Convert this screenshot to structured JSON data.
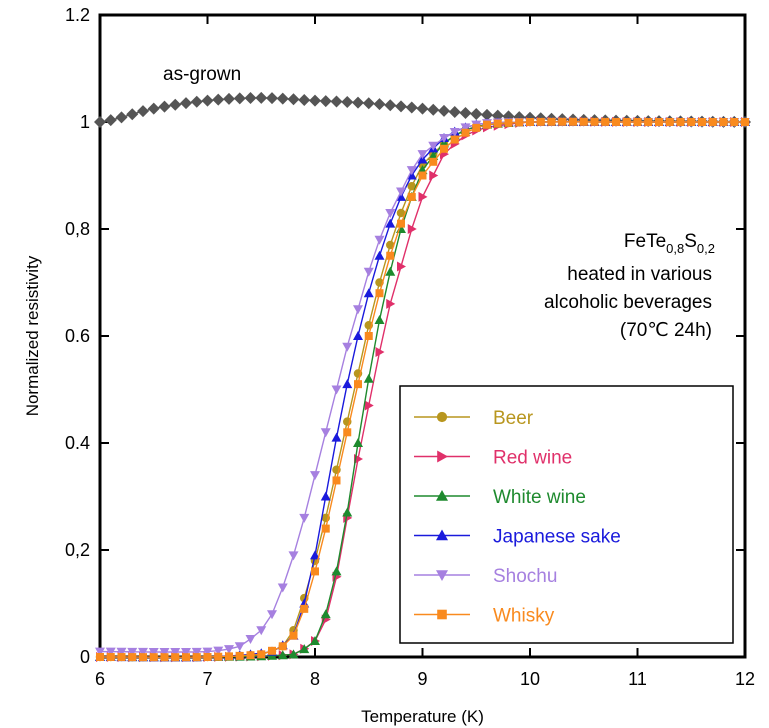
{
  "chart_data": {
    "type": "line",
    "title": "",
    "xlabel": "Temperature (K)",
    "ylabel": "Normalized resistivity",
    "xlim": [
      6,
      12
    ],
    "ylim": [
      0,
      1.2
    ],
    "x_ticks": [
      6,
      7,
      8,
      9,
      10,
      11,
      12
    ],
    "x_tick_labels": [
      "6",
      "7",
      "8",
      "9",
      "10",
      "11",
      "12"
    ],
    "y_ticks": [
      0,
      0.2,
      0.4,
      0.6,
      0.8,
      1.0,
      1.2
    ],
    "y_tick_labels": [
      "0",
      "0,2",
      "0.4",
      "0.6",
      "0,8",
      "1",
      "1.2"
    ],
    "grid": false,
    "legend_position": "bottom-right",
    "annotations": {
      "as_grown": "as-grown",
      "formula_base": "FeTe",
      "formula_sub1": "0,8",
      "formula_mid": "S",
      "formula_sub2": "0,2",
      "line2": "heated in various",
      "line3": "alcoholic beverages",
      "line4": "(70℃ 24h)"
    },
    "reference_series": {
      "name": "as-grown",
      "color": "#555555",
      "marker": "diamond",
      "x": [
        6.0,
        6.5,
        7.0,
        7.5,
        8.0,
        8.5,
        9.0,
        9.5,
        10.0,
        10.5,
        11.0,
        11.5,
        12.0
      ],
      "y": [
        1.0,
        1.025,
        1.04,
        1.045,
        1.04,
        1.035,
        1.025,
        1.015,
        1.008,
        1.004,
        1.002,
        1.001,
        1.0
      ]
    },
    "series": [
      {
        "name": "Beer",
        "color": "#b8961e",
        "marker": "circle",
        "x": [
          6.0,
          7.0,
          7.5,
          7.7,
          7.8,
          7.9,
          8.0,
          8.1,
          8.2,
          8.3,
          8.4,
          8.5,
          8.6,
          8.7,
          8.8,
          8.9,
          9.0,
          9.2,
          9.4,
          9.6,
          10.0,
          11.0,
          12.0
        ],
        "y": [
          0.0,
          0.0,
          0.005,
          0.02,
          0.05,
          0.11,
          0.18,
          0.26,
          0.35,
          0.44,
          0.53,
          0.62,
          0.7,
          0.77,
          0.83,
          0.88,
          0.92,
          0.96,
          0.985,
          0.995,
          1.0,
          1.0,
          1.0
        ]
      },
      {
        "name": "Red wine",
        "color": "#e0306a",
        "marker": "triangle-right",
        "x": [
          6.0,
          7.0,
          7.8,
          8.0,
          8.1,
          8.2,
          8.3,
          8.4,
          8.5,
          8.6,
          8.7,
          8.8,
          8.9,
          9.0,
          9.1,
          9.2,
          9.4,
          9.6,
          10.0,
          11.0,
          12.0
        ],
        "y": [
          0.0,
          0.0,
          0.005,
          0.03,
          0.07,
          0.15,
          0.26,
          0.37,
          0.47,
          0.57,
          0.66,
          0.73,
          0.8,
          0.86,
          0.9,
          0.94,
          0.975,
          0.99,
          1.0,
          1.0,
          1.0
        ]
      },
      {
        "name": "White wine",
        "color": "#1e8a2e",
        "marker": "triangle-up",
        "x": [
          6.0,
          7.0,
          7.8,
          8.0,
          8.1,
          8.2,
          8.3,
          8.4,
          8.5,
          8.6,
          8.7,
          8.8,
          8.9,
          9.0,
          9.2,
          9.4,
          9.6,
          10.0,
          11.0,
          12.0
        ],
        "y": [
          0.0,
          0.0,
          0.005,
          0.03,
          0.08,
          0.16,
          0.27,
          0.4,
          0.52,
          0.63,
          0.72,
          0.8,
          0.86,
          0.91,
          0.96,
          0.985,
          0.995,
          1.0,
          1.0,
          1.0
        ]
      },
      {
        "name": "Japanese sake",
        "color": "#1a1adc",
        "marker": "triangle-up",
        "x": [
          6.0,
          7.0,
          7.6,
          7.8,
          7.9,
          8.0,
          8.1,
          8.2,
          8.3,
          8.4,
          8.5,
          8.6,
          8.7,
          8.8,
          8.9,
          9.0,
          9.2,
          9.4,
          9.6,
          10.0,
          11.0,
          12.0
        ],
        "y": [
          0.0,
          0.0,
          0.01,
          0.04,
          0.1,
          0.19,
          0.3,
          0.41,
          0.51,
          0.6,
          0.68,
          0.75,
          0.81,
          0.86,
          0.9,
          0.93,
          0.97,
          0.99,
          0.998,
          1.0,
          1.0,
          1.0
        ]
      },
      {
        "name": "Shochu",
        "color": "#a680e0",
        "marker": "triangle-down",
        "x": [
          6.0,
          7.0,
          7.3,
          7.5,
          7.6,
          7.7,
          7.8,
          7.9,
          8.0,
          8.1,
          8.2,
          8.3,
          8.4,
          8.5,
          8.6,
          8.7,
          8.8,
          8.9,
          9.0,
          9.2,
          9.4,
          9.6,
          10.0,
          11.0,
          12.0
        ],
        "y": [
          0.01,
          0.01,
          0.02,
          0.05,
          0.08,
          0.13,
          0.19,
          0.26,
          0.34,
          0.42,
          0.5,
          0.58,
          0.65,
          0.72,
          0.78,
          0.83,
          0.87,
          0.91,
          0.94,
          0.97,
          0.99,
          0.998,
          1.0,
          1.0,
          1.0
        ]
      },
      {
        "name": "Whisky",
        "color": "#f98a1e",
        "marker": "square",
        "x": [
          6.0,
          7.0,
          7.5,
          7.7,
          7.8,
          7.9,
          8.0,
          8.1,
          8.2,
          8.3,
          8.4,
          8.5,
          8.6,
          8.7,
          8.8,
          8.9,
          9.0,
          9.2,
          9.4,
          9.6,
          10.0,
          11.0,
          12.0
        ],
        "y": [
          0.0,
          0.0,
          0.005,
          0.02,
          0.04,
          0.09,
          0.16,
          0.24,
          0.33,
          0.42,
          0.51,
          0.6,
          0.68,
          0.75,
          0.81,
          0.86,
          0.9,
          0.95,
          0.98,
          0.995,
          1.0,
          1.0,
          1.0
        ]
      }
    ]
  }
}
